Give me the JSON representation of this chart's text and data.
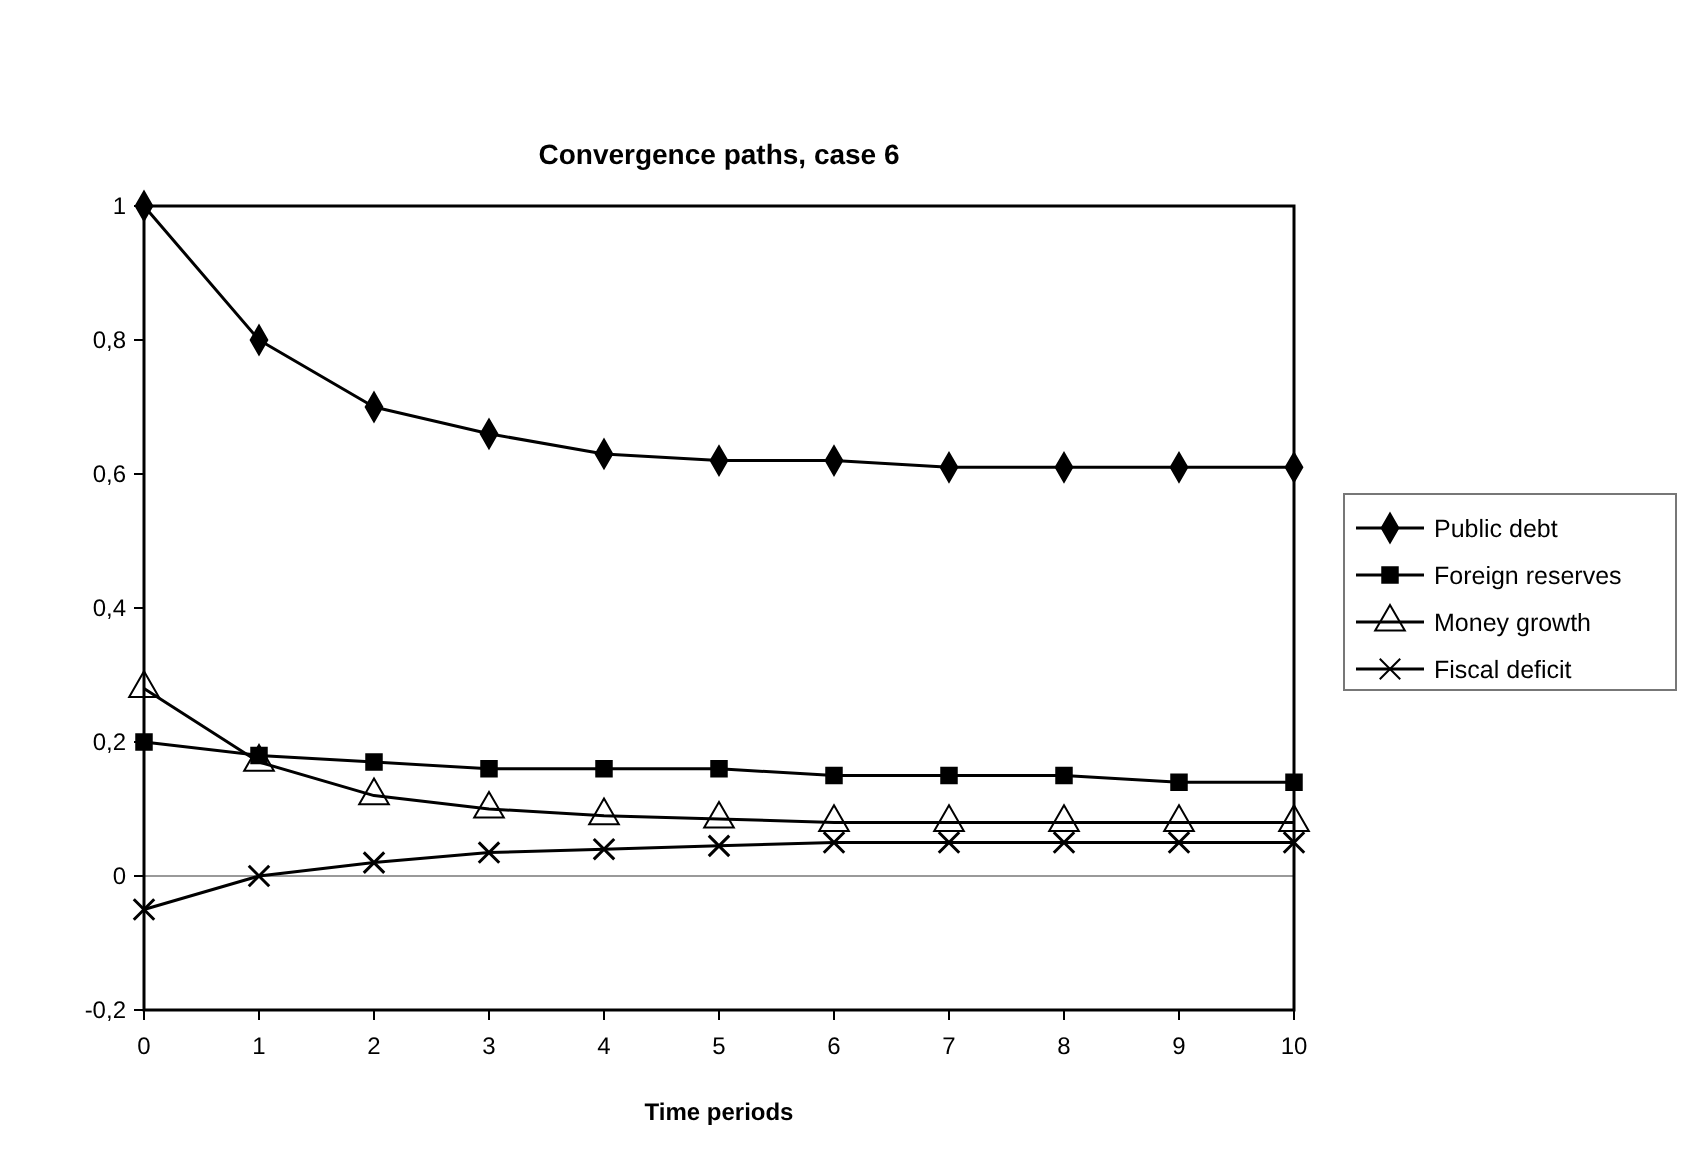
{
  "chart_data": {
    "type": "line",
    "title": "Convergence paths, case 6",
    "xlabel": "Time periods",
    "x": [
      0,
      1,
      2,
      3,
      4,
      5,
      6,
      7,
      8,
      9,
      10
    ],
    "xlim": [
      0,
      10
    ],
    "xticks": [
      0,
      1,
      2,
      3,
      4,
      5,
      6,
      7,
      8,
      9,
      10
    ],
    "ylim": [
      -0.2,
      1
    ],
    "yticks": [
      {
        "value": -0.2,
        "label": "-0,2"
      },
      0,
      {
        "value": 0.2,
        "label": "0,2"
      },
      {
        "value": 0.4,
        "label": "0,4"
      },
      {
        "value": 0.6,
        "label": "0,6"
      },
      {
        "value": 0.8,
        "label": "0,8"
      },
      1
    ],
    "series": [
      {
        "name": "Public debt",
        "color": "#000000",
        "marker": "diamond",
        "values": [
          1,
          0.8,
          0.7,
          0.66,
          0.63,
          0.62,
          0.62,
          0.61,
          0.61,
          0.61,
          0.61
        ]
      },
      {
        "name": "Foreign reserves",
        "color": "#000000",
        "marker": "square",
        "values": [
          0.2,
          0.18,
          0.17,
          0.16,
          0.16,
          0.16,
          0.15,
          0.15,
          0.15,
          0.14,
          0.14
        ]
      },
      {
        "name": "Money growth",
        "color": "#000000",
        "marker": "triangle",
        "values": [
          0.28,
          0.17,
          0.12,
          0.1,
          0.09,
          0.085,
          0.08,
          0.08,
          0.08,
          0.08,
          0.08
        ]
      },
      {
        "name": "Fiscal deficit",
        "color": "#000000",
        "marker": "cross",
        "values": [
          -0.05,
          0,
          0.02,
          0.035,
          0.04,
          0.045,
          0.05,
          0.05,
          0.05,
          0.05,
          0.05
        ]
      }
    ],
    "ref_lines": [
      {
        "axis": "y",
        "value": 0,
        "color": "#999999"
      }
    ],
    "grid": false,
    "legend": "right",
    "line_style": "solid"
  }
}
